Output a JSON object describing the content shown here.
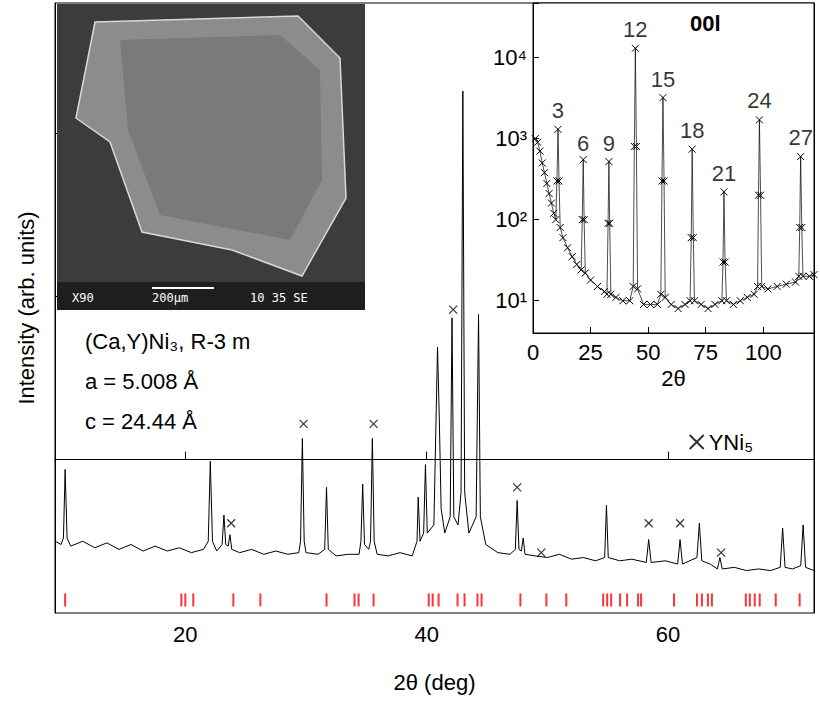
{
  "chart_data": [
    {
      "type": "line",
      "x_label": "2θ (deg)",
      "y_label": "Intensity (arb. units)",
      "xlim": [
        9.2,
        72.1
      ],
      "xticks": [
        20,
        40,
        60
      ],
      "ylim": [
        -0.94,
        2.8
      ],
      "yticks": [
        0,
        1,
        2
      ],
      "tick_labels": "x",
      "grid": false,
      "legend": "right",
      "annotations": [
        {
          "text": "(Ca,Y)Ni₃, R-3 m"
        },
        {
          "text": "a = 5.008 Å"
        },
        {
          "text": "c = 24.44 Å"
        }
      ],
      "series": [
        {
          "type": "line",
          "color": "#000000",
          "x": [
            9.2,
            9.7,
            9.9,
            10.04,
            10.2,
            10.5,
            11.5,
            12.5,
            13.5,
            14.5,
            15.5,
            16.5,
            17.5,
            18.5,
            19.5,
            20.5,
            21.5,
            21.9,
            22.07,
            22.25,
            22.6,
            23.05,
            23.2,
            23.35,
            23.55,
            23.7,
            23.85,
            24.5,
            25.5,
            26.5,
            27.5,
            28.5,
            29.4,
            29.55,
            29.7,
            29.85,
            30.0,
            31.0,
            31.55,
            31.7,
            31.85,
            32.5,
            33.5,
            34.4,
            34.55,
            34.7,
            34.85,
            35.2,
            35.35,
            35.5,
            35.65,
            35.9,
            36.8,
            37.8,
            38.8,
            39.2,
            39.3,
            39.45,
            39.75,
            39.9,
            40.05,
            40.6,
            40.9,
            41.05,
            41.2,
            41.5,
            41.95,
            42.1,
            42.25,
            42.6,
            42.85,
            43.0,
            43.15,
            43.5,
            44.1,
            44.3,
            44.45,
            44.9,
            45.9,
            46.9,
            47.35,
            47.5,
            47.65,
            47.85,
            48.0,
            48.15,
            49.0,
            50.0,
            51.0,
            52.0,
            53.0,
            54.0,
            54.75,
            54.9,
            55.05,
            56.0,
            57.0,
            58.2,
            58.4,
            58.6,
            59.8,
            60.8,
            61.0,
            61.2,
            62.4,
            62.6,
            62.8,
            63.5,
            64.1,
            64.3,
            64.5,
            65.5,
            66.5,
            67.5,
            68.5,
            69.3,
            69.5,
            69.7,
            70.3,
            71.0,
            71.2,
            71.4,
            72.1
          ],
          "values": [
            -0.5,
            -0.52,
            -0.48,
            -0.06,
            -0.48,
            -0.53,
            -0.5,
            -0.54,
            -0.51,
            -0.55,
            -0.52,
            -0.56,
            -0.53,
            -0.56,
            -0.54,
            -0.57,
            -0.55,
            -0.5,
            -0.01,
            -0.5,
            -0.56,
            -0.52,
            -0.34,
            -0.52,
            -0.53,
            -0.46,
            -0.55,
            -0.57,
            -0.55,
            -0.58,
            -0.56,
            -0.58,
            -0.57,
            -0.5,
            0.13,
            -0.5,
            -0.57,
            -0.58,
            -0.55,
            -0.17,
            -0.55,
            -0.59,
            -0.58,
            -0.58,
            -0.5,
            -0.15,
            -0.52,
            -0.55,
            -0.5,
            0.13,
            -0.5,
            -0.58,
            -0.59,
            -0.57,
            -0.59,
            -0.5,
            -0.23,
            -0.5,
            -0.45,
            -0.03,
            -0.45,
            -0.4,
            0.69,
            0.25,
            -0.3,
            -0.45,
            -0.35,
            0.87,
            -0.35,
            -0.4,
            -0.2,
            2.26,
            -0.2,
            -0.45,
            -0.35,
            0.89,
            -0.35,
            -0.52,
            -0.57,
            -0.58,
            -0.55,
            -0.25,
            -0.55,
            -0.56,
            -0.48,
            -0.58,
            -0.59,
            -0.6,
            -0.58,
            -0.61,
            -0.6,
            -0.62,
            -0.6,
            -0.28,
            -0.6,
            -0.62,
            -0.61,
            -0.63,
            -0.49,
            -0.63,
            -0.62,
            -0.64,
            -0.49,
            -0.64,
            -0.6,
            -0.39,
            -0.62,
            -0.64,
            -0.67,
            -0.6,
            -0.67,
            -0.66,
            -0.68,
            -0.67,
            -0.68,
            -0.66,
            -0.42,
            -0.66,
            -0.67,
            -0.65,
            -0.4,
            -0.66,
            -0.68
          ]
        },
        {
          "name": "YNi₅",
          "type": "scatter",
          "marker": "x",
          "color": "#000000",
          "x": [
            23.8,
            29.8,
            35.6,
            42.2,
            47.5,
            49.5,
            58.4,
            61.0,
            64.4
          ],
          "values": [
            -0.39,
            0.22,
            0.22,
            0.92,
            -0.17,
            -0.57,
            -0.39,
            -0.39,
            -0.57
          ]
        },
        {
          "type": "scatter",
          "marker": "|",
          "color": "#ff0000",
          "x": [
            10.04,
            19.67,
            20.0,
            20.66,
            23.98,
            26.22,
            31.7,
            34.02,
            34.36,
            35.6,
            40.17,
            40.5,
            40.99,
            42.56,
            43.14,
            44.21,
            44.55,
            47.77,
            49.92,
            51.57,
            54.63,
            54.96,
            55.29,
            56.03,
            56.61,
            57.52,
            57.77,
            60.5,
            62.4,
            62.81,
            63.31,
            63.64,
            66.45,
            66.78,
            67.19,
            67.6,
            68.93,
            70.91
          ],
          "values": [
            -0.86,
            -0.86,
            -0.86,
            -0.86,
            -0.86,
            -0.86,
            -0.86,
            -0.86,
            -0.86,
            -0.86,
            -0.86,
            -0.86,
            -0.86,
            -0.86,
            -0.86,
            -0.86,
            -0.86,
            -0.86,
            -0.86,
            -0.86,
            -0.86,
            -0.86,
            -0.86,
            -0.86,
            -0.86,
            -0.86,
            -0.86,
            -0.86,
            -0.86,
            -0.86,
            -0.86,
            -0.86,
            -0.86,
            -0.86,
            -0.86,
            -0.86,
            -0.86,
            -0.86
          ]
        }
      ]
    },
    {
      "type": "line",
      "title": "00l",
      "x_label": "2θ",
      "xlim": [
        0,
        122
      ],
      "xticks": [
        0,
        25,
        50,
        75,
        100
      ],
      "ylim": [
        4,
        47000
      ],
      "yticks": [
        {
          "value": 10,
          "label": "10¹"
        },
        {
          "value": 100,
          "label": "10²"
        },
        {
          "value": 1000,
          "label": "10³"
        },
        {
          "value": 10000,
          "label": "10⁴"
        }
      ],
      "log": "y",
      "grid": false,
      "annotations": [
        {
          "text": "3",
          "x": 10.85,
          "y": 1500
        },
        {
          "text": "6",
          "x": 21.8,
          "y": 600
        },
        {
          "text": "9",
          "x": 32.96,
          "y": 600
        },
        {
          "text": "12",
          "x": 44.44,
          "y": 15000
        },
        {
          "text": "15",
          "x": 56.42,
          "y": 3600
        },
        {
          "text": "18",
          "x": 69.1,
          "y": 850
        },
        {
          "text": "21",
          "x": 82.9,
          "y": 250
        },
        {
          "text": "24",
          "x": 98.3,
          "y": 2000
        },
        {
          "text": "27",
          "x": 116.2,
          "y": 700
        }
      ],
      "series": [
        {
          "type": "line",
          "marker": "x",
          "color": "#000000",
          "x": [
            1,
            2,
            3,
            4,
            5,
            6,
            7,
            8,
            9,
            9.9,
            10.4,
            10.85,
            11.3,
            11.8,
            13,
            15,
            17,
            19,
            20.9,
            21.4,
            21.8,
            22.2,
            22.7,
            25,
            28,
            31,
            32.1,
            32.6,
            32.96,
            33.3,
            33.8,
            36,
            39,
            42,
            43.5,
            44.0,
            44.44,
            44.9,
            45.4,
            48,
            51,
            54,
            55.5,
            56.0,
            56.42,
            56.9,
            57.4,
            60,
            63,
            66,
            68.2,
            68.7,
            69.1,
            69.6,
            70.1,
            73,
            76,
            79,
            82,
            82.5,
            82.9,
            83.4,
            84,
            87,
            90,
            93,
            96,
            97.5,
            97.9,
            98.3,
            98.8,
            99.3,
            102,
            106,
            110,
            114,
            115.4,
            115.8,
            116.2,
            116.7,
            117.2,
            120,
            122
          ],
          "values": [
            1000,
            900,
            700,
            500,
            380,
            280,
            210,
            160,
            120,
            100,
            300,
            1300,
            300,
            80,
            60,
            45,
            35,
            28,
            24,
            100,
            550,
            100,
            22,
            18,
            15,
            13,
            12,
            90,
            520,
            90,
            12,
            11,
            10,
            10,
            15,
            800,
            13000,
            800,
            14,
            9,
            9,
            9,
            12,
            300,
            3200,
            300,
            11,
            9,
            8,
            9,
            10,
            60,
            740,
            60,
            10,
            9,
            8,
            9,
            10,
            30,
            220,
            30,
            10,
            9,
            10,
            11,
            12,
            15,
            200,
            1700,
            200,
            15,
            14,
            15,
            16,
            17,
            20,
            80,
            600,
            80,
            20,
            20,
            21
          ]
        }
      ]
    }
  ],
  "sem_image": {
    "labels": [
      "X90",
      "200μm",
      "10 35 SE"
    ]
  }
}
